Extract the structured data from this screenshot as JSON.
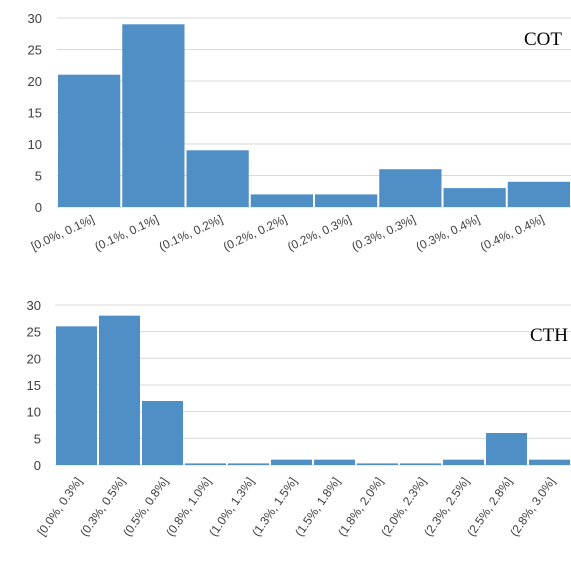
{
  "colors": {
    "bar": "#4f8fc6",
    "grid": "#d9d9d9",
    "text": "#404040"
  },
  "chart_data": [
    {
      "type": "bar",
      "title": "COT",
      "xlabel": "",
      "ylabel": "",
      "ylim": [
        0,
        30
      ],
      "yticks": [
        0,
        5,
        10,
        15,
        20,
        25,
        30
      ],
      "grid": true,
      "categories": [
        "[0.0%, 0.1%]",
        "(0.1%, 0.1%]",
        "(0.1%, 0.2%]",
        "(0.2%, 0.2%]",
        "(0.2%, 0.3%]",
        "(0.3%, 0.3%]",
        "(0.3%, 0.4%]",
        "(0.4%, 0.4%]"
      ],
      "values": [
        21,
        29,
        9,
        2,
        2,
        6,
        3,
        4
      ]
    },
    {
      "type": "bar",
      "title": "CTH",
      "xlabel": "",
      "ylabel": "",
      "ylim": [
        0,
        30
      ],
      "yticks": [
        0,
        5,
        10,
        15,
        20,
        25,
        30
      ],
      "grid": true,
      "categories": [
        "[0.0%, 0.3%]",
        "(0.3%, 0.5%]",
        "(0.5%, 0.8%]",
        "(0.8%, 1.0%]",
        "(1.0%, 1.3%]",
        "(1.3%, 1.5%]",
        "(1.5%, 1.8%]",
        "(1.8%, 2.0%]",
        "(2.0%, 2.3%]",
        "(2.3%, 2.5%]",
        "(2.5%, 2.8%]",
        "(2.8%, 3.0%]"
      ],
      "values": [
        26,
        28,
        12,
        0.3,
        0.3,
        1,
        1,
        0.3,
        0.3,
        1,
        6,
        1
      ]
    }
  ]
}
